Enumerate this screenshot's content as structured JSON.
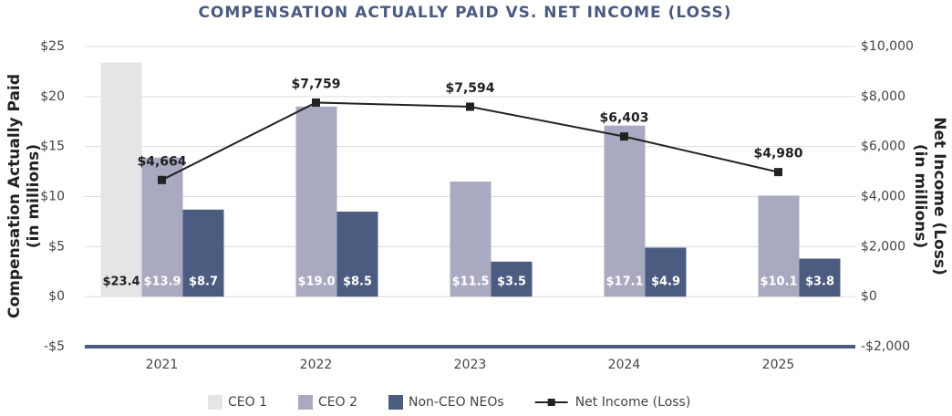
{
  "chart_data": {
    "type": "bar_line",
    "title": "COMPENSATION ACTUALLY PAID VS. NET INCOME (LOSS)",
    "ylabel": [
      "Compensation Actually Paid",
      "(in millions)"
    ],
    "y2label": [
      "Net Income (Loss)",
      "(in millions)"
    ],
    "categories": [
      "2021",
      "2022",
      "2023",
      "2024",
      "2025"
    ],
    "series": [
      {
        "name": "CEO 1",
        "color": "#e5e5e8",
        "values": [
          23.4,
          null,
          null,
          null,
          null
        ],
        "value_labels": [
          "$23.4",
          null,
          null,
          null,
          null
        ]
      },
      {
        "name": "CEO 2",
        "color": "#a9aac1",
        "values": [
          13.9,
          19.0,
          11.5,
          17.1,
          10.1
        ],
        "value_labels": [
          "$13.9",
          "$19.0",
          "$11.5",
          "$17.1",
          "$10.1"
        ]
      },
      {
        "name": "Non-CEO NEOs",
        "color": "#4c5c80",
        "values": [
          8.7,
          8.5,
          3.5,
          4.9,
          3.8
        ],
        "value_labels": [
          "$8.7",
          "$8.5",
          "$3.5",
          "$4.9",
          "$3.8"
        ]
      },
      {
        "name": "Net Income (Loss)",
        "type": "line",
        "axis": "y2",
        "color": "#222222",
        "values": [
          4664,
          7759,
          7594,
          6403,
          4980
        ],
        "value_labels": [
          "$4,664",
          "$7,759",
          "$7,594",
          "$6,403",
          "$4,980"
        ]
      }
    ],
    "ylim": [
      -5,
      25
    ],
    "yticks": [
      {
        "value": -5,
        "label": "-$5"
      },
      {
        "value": 0,
        "label": "$0"
      },
      {
        "value": 5,
        "label": "$5"
      },
      {
        "value": 10,
        "label": "$10"
      },
      {
        "value": 15,
        "label": "$15"
      },
      {
        "value": 20,
        "label": "$20"
      },
      {
        "value": 25,
        "label": "$25"
      }
    ],
    "y2lim": [
      -2000,
      10000
    ],
    "y2ticks": [
      {
        "value": -2000,
        "label": "-$2,000"
      },
      {
        "value": 0,
        "label": "$0"
      },
      {
        "value": 2000,
        "label": "$2,000"
      },
      {
        "value": 4000,
        "label": "$4,000"
      },
      {
        "value": 6000,
        "label": "$6,000"
      },
      {
        "value": 8000,
        "label": "$8,000"
      },
      {
        "value": 10000,
        "label": "$10,000"
      }
    ],
    "grid": true
  }
}
